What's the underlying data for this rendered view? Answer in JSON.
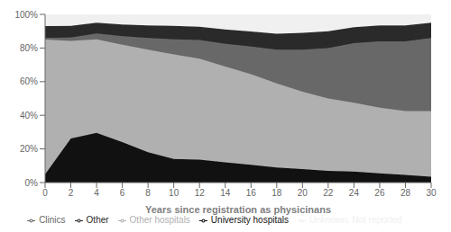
{
  "chart_data": {
    "type": "area",
    "stacked": true,
    "xlabel": "Years since registration as physicinans",
    "x": [
      0,
      2,
      4,
      6,
      8,
      10,
      12,
      14,
      16,
      18,
      20,
      22,
      24,
      26,
      28,
      30
    ],
    "series": [
      {
        "name": "University hospitals",
        "color": "#111111",
        "values": [
          5.0,
          26.2,
          29.6,
          24.0,
          18.0,
          14.0,
          13.7,
          12.0,
          10.5,
          9.0,
          8.0,
          7.0,
          6.5,
          5.5,
          4.5,
          3.5
        ]
      },
      {
        "name": "Other hospitals",
        "color": "#b0b0b0",
        "values": [
          80.0,
          58.0,
          55.5,
          58.0,
          61.0,
          62.2,
          60.0,
          57.0,
          54.0,
          50.0,
          46.0,
          43.0,
          40.9,
          39.0,
          38.0,
          39.0
        ]
      },
      {
        "name": "Clinics",
        "color": "#686868",
        "values": [
          1.0,
          2.0,
          3.5,
          5.0,
          7.0,
          9.0,
          11.0,
          13.5,
          16.4,
          20.0,
          25.0,
          30.0,
          35.5,
          39.5,
          41.5,
          43.5
        ]
      },
      {
        "name": "Other",
        "color": "#2a2a2a",
        "values": [
          7.0,
          7.0,
          6.5,
          7.0,
          7.5,
          8.0,
          8.0,
          8.5,
          9.0,
          9.5,
          10.0,
          10.0,
          9.5,
          9.5,
          9.5,
          9.0
        ]
      },
      {
        "name": "Unknown, Not reported",
        "color": "#f0f0f0",
        "values": [
          7.0,
          6.8,
          4.9,
          6.0,
          6.5,
          6.8,
          7.3,
          9.0,
          10.1,
          11.5,
          11.0,
          10.0,
          7.6,
          6.5,
          6.5,
          5.0
        ]
      }
    ],
    "xlim": [
      0,
      30
    ],
    "xticks": [
      0,
      2,
      4,
      6,
      8,
      10,
      12,
      14,
      16,
      18,
      20,
      22,
      24,
      26,
      28,
      30
    ],
    "ylim": [
      0,
      100
    ],
    "yticks": [
      {
        "value": 0,
        "label": "0%"
      },
      {
        "value": 20,
        "label": "20%"
      },
      {
        "value": 40,
        "label": "40%"
      },
      {
        "value": 60,
        "label": "60%"
      },
      {
        "value": 80,
        "label": "80%"
      },
      {
        "value": 100,
        "label": "100%"
      }
    ],
    "grid": false,
    "legend": "bottom"
  }
}
